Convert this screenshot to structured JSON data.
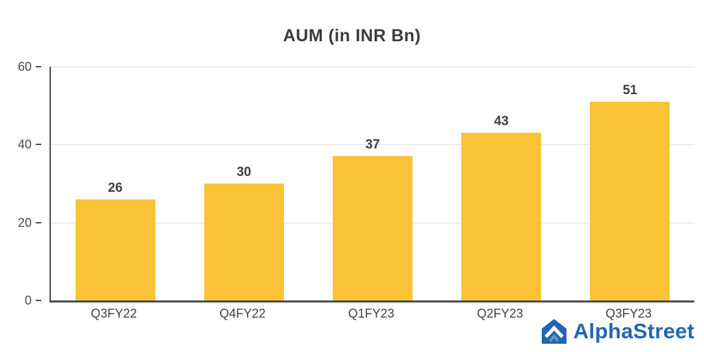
{
  "chart_data": {
    "type": "bar",
    "title": "AUM (in INR Bn)",
    "categories": [
      "Q3FY22",
      "Q4FY22",
      "Q1FY23",
      "Q2FY23",
      "Q3FY23"
    ],
    "values": [
      26,
      30,
      37,
      43,
      51
    ],
    "xlabel": "",
    "ylabel": "",
    "ylim": [
      0,
      60
    ],
    "yticks": [
      0,
      20,
      40,
      60
    ],
    "grid": true,
    "legend": false,
    "bar_color": "#F9C237",
    "last_bar_color": "#F9C237"
  },
  "branding": {
    "logo_text": "AlphaStreet",
    "logo_color": "#2565AE"
  }
}
